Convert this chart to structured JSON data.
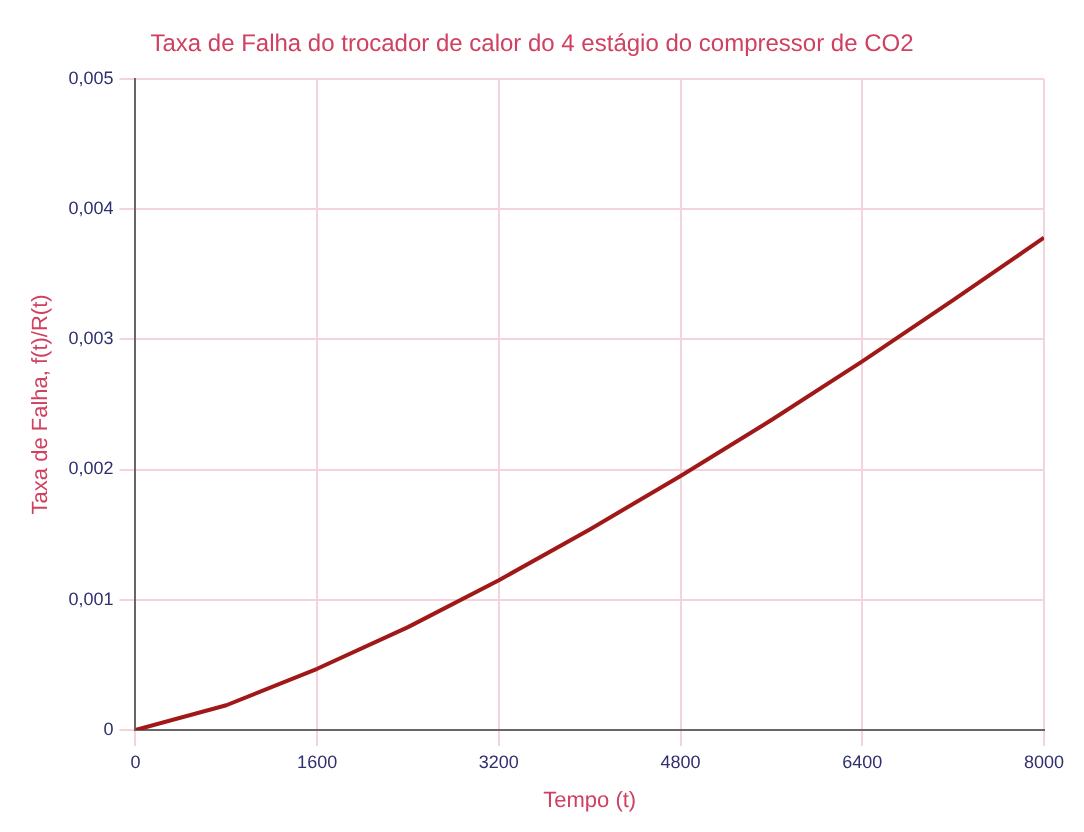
{
  "chart_data": {
    "type": "line",
    "title": "Taxa de Falha do trocador de calor do 4 estágio do compressor de CO2",
    "xlabel": "Tempo (t)",
    "ylabel": "Taxa de Falha, f(t)/R(t)",
    "x": [
      0,
      800,
      1600,
      2400,
      3200,
      4000,
      4800,
      5600,
      6400,
      7200,
      8000
    ],
    "series": [
      {
        "color": "#a01818",
        "values": [
          0,
          0.00019,
          0.00047,
          0.00079,
          0.00115,
          0.00154,
          0.00195,
          0.00238,
          0.00283,
          0.0033,
          0.00378
        ]
      }
    ],
    "xlim": [
      0,
      8000
    ],
    "xticks": [
      0,
      1600,
      3200,
      4800,
      6400,
      8000
    ],
    "ylim": [
      0,
      0.005
    ],
    "yticks": [
      0,
      {
        "value": 0.001,
        "label": "0,001"
      },
      {
        "value": 0.002,
        "label": "0,002"
      },
      {
        "value": 0.003,
        "label": "0,003"
      },
      {
        "value": 0.004,
        "label": "0,004"
      },
      {
        "value": 0.005,
        "label": "0,005"
      }
    ],
    "grid": true,
    "marker": "none",
    "line_style": "solid"
  }
}
